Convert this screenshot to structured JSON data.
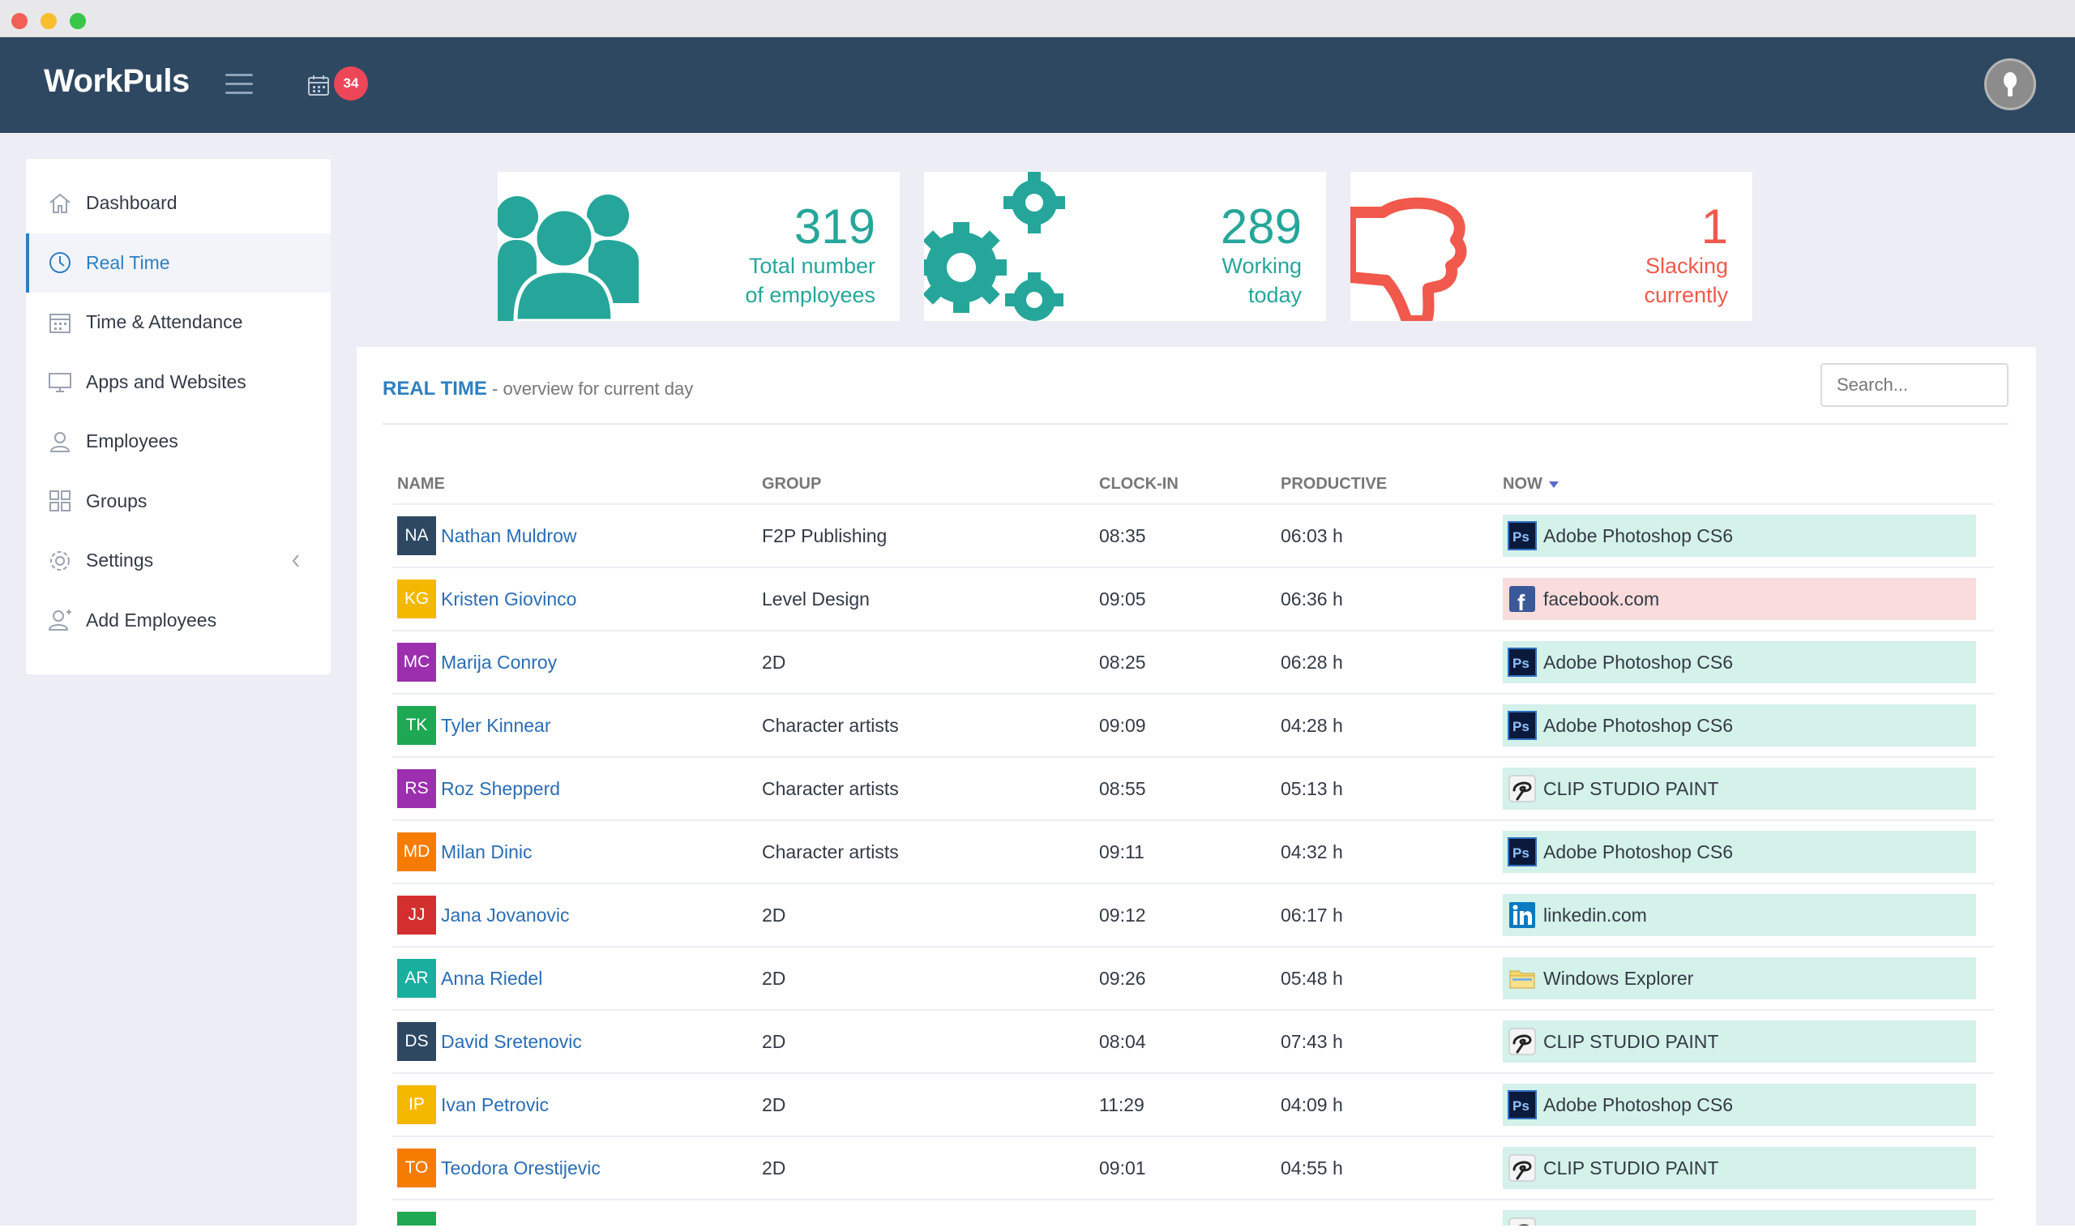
{
  "app": {
    "brand": "WorkPuls",
    "notification_count": "34"
  },
  "sidebar": {
    "items": [
      {
        "label": "Dashboard",
        "icon": "home-icon",
        "active": false
      },
      {
        "label": "Real Time",
        "icon": "clock-icon",
        "active": true
      },
      {
        "label": "Time & Attendance",
        "icon": "calendar-icon",
        "active": false
      },
      {
        "label": "Apps and Websites",
        "icon": "monitor-icon",
        "active": false
      },
      {
        "label": "Employees",
        "icon": "user-icon",
        "active": false
      },
      {
        "label": "Groups",
        "icon": "grid-icon",
        "active": false
      },
      {
        "label": "Settings",
        "icon": "gear-icon",
        "active": false
      },
      {
        "label": "Add Employees",
        "icon": "add-user-icon",
        "active": false
      }
    ]
  },
  "stats": {
    "total": {
      "value": "319",
      "line1": "Total number",
      "line2": "of employees"
    },
    "working": {
      "value": "289",
      "line1": "Working",
      "line2": "today"
    },
    "slacking": {
      "value": "1",
      "line1": "Slacking",
      "line2": "currently"
    }
  },
  "panel": {
    "title": "REAL TIME",
    "subtitle": " - overview for current day",
    "search_placeholder": "Search..."
  },
  "table": {
    "headers": {
      "name": "NAME",
      "group": "GROUP",
      "clock_in": "CLOCK-IN",
      "productive": "PRODUCTIVE",
      "now": "NOW"
    },
    "rows": [
      {
        "initials": "NA",
        "color": "#2e4862",
        "name": "Nathan Muldrow",
        "group": "F2P Publishing",
        "clock_in": "08:35",
        "productive": "06:03 h",
        "now": "Adobe Photoshop CS6",
        "app": "photoshop",
        "status": "productive"
      },
      {
        "initials": "KG",
        "color": "#f5b800",
        "name": "Kristen Giovinco",
        "group": "Level Design",
        "clock_in": "09:05",
        "productive": "06:36 h",
        "now": "facebook.com",
        "app": "facebook",
        "status": "unproductive"
      },
      {
        "initials": "MC",
        "color": "#9b2fae",
        "name": "Marija Conroy",
        "group": "2D",
        "clock_in": "08:25",
        "productive": "06:28 h",
        "now": "Adobe Photoshop CS6",
        "app": "photoshop",
        "status": "productive"
      },
      {
        "initials": "TK",
        "color": "#1ea854",
        "name": "Tyler Kinnear",
        "group": "Character artists",
        "clock_in": "09:09",
        "productive": "04:28 h",
        "now": "Adobe Photoshop CS6",
        "app": "photoshop",
        "status": "productive"
      },
      {
        "initials": "RS",
        "color": "#9b2fae",
        "name": "Roz Shepperd",
        "group": "Character artists",
        "clock_in": "08:55",
        "productive": "05:13 h",
        "now": "CLIP STUDIO PAINT",
        "app": "clipstudio",
        "status": "productive"
      },
      {
        "initials": "MD",
        "color": "#f57c00",
        "name": "Milan Dinic",
        "group": "Character artists",
        "clock_in": "09:11",
        "productive": "04:32 h",
        "now": "Adobe Photoshop CS6",
        "app": "photoshop",
        "status": "productive"
      },
      {
        "initials": "JJ",
        "color": "#d32f2f",
        "name": "Jana Jovanovic",
        "group": "2D",
        "clock_in": "09:12",
        "productive": "06:17 h",
        "now": "linkedin.com",
        "app": "linkedin",
        "status": "productive"
      },
      {
        "initials": "AR",
        "color": "#1aae9f",
        "name": "Anna Riedel",
        "group": "2D",
        "clock_in": "09:26",
        "productive": "05:48 h",
        "now": "Windows Explorer",
        "app": "explorer",
        "status": "productive"
      },
      {
        "initials": "DS",
        "color": "#2e4862",
        "name": "David Sretenovic",
        "group": "2D",
        "clock_in": "08:04",
        "productive": "07:43 h",
        "now": "CLIP STUDIO PAINT",
        "app": "clipstudio",
        "status": "productive"
      },
      {
        "initials": "IP",
        "color": "#f5b800",
        "name": "Ivan Petrovic",
        "group": "2D",
        "clock_in": "11:29",
        "productive": "04:09 h",
        "now": "Adobe Photoshop CS6",
        "app": "photoshop",
        "status": "productive"
      },
      {
        "initials": "TO",
        "color": "#f57c00",
        "name": "Teodora Orestijevic",
        "group": "2D",
        "clock_in": "09:01",
        "productive": "04:55 h",
        "now": "CLIP STUDIO PAINT",
        "app": "clipstudio",
        "status": "productive"
      },
      {
        "initials": "",
        "color": "#1ea854",
        "name": "",
        "group": "",
        "clock_in": "",
        "productive": "",
        "now": "",
        "app": "clipstudio",
        "status": "productive"
      }
    ]
  },
  "colors": {
    "navbar": "#2e4862",
    "accent": "#2e7fc1",
    "teal": "#26a69a",
    "coral": "#f0594c",
    "productive_bg": "#d4f1ea",
    "unproductive_bg": "#fbdcdc"
  }
}
